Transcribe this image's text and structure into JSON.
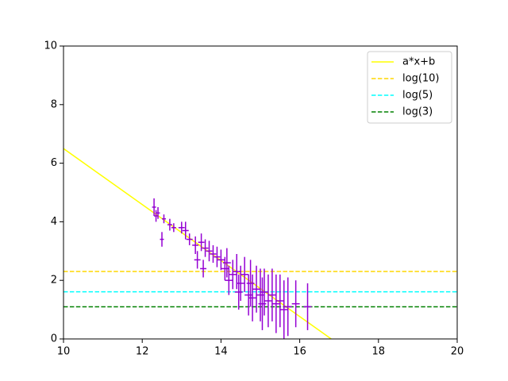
{
  "chart_data": {
    "type": "line",
    "xlim": [
      10,
      20
    ],
    "ylim": [
      0,
      10
    ],
    "xticks": [
      10,
      12,
      14,
      16,
      18,
      20
    ],
    "yticks": [
      0,
      2,
      4,
      6,
      8,
      10
    ],
    "grid": false,
    "legend": "upper right",
    "series": [
      {
        "name": "a*x+b",
        "color": "#ffff00",
        "style": "solid",
        "x": [
          10,
          16.8
        ],
        "values": [
          6.5,
          0
        ]
      },
      {
        "name": "log(10)",
        "color": "#ffd700",
        "style": "dashed",
        "x": [
          10,
          20
        ],
        "values": [
          2.303,
          2.303
        ]
      },
      {
        "name": "log(5)",
        "color": "#00ffff",
        "style": "dashed",
        "x": [
          10,
          20
        ],
        "values": [
          1.609,
          1.609
        ]
      },
      {
        "name": "log(3)",
        "color": "#008000",
        "style": "dashed",
        "x": [
          10,
          20
        ],
        "values": [
          1.099,
          1.099
        ]
      },
      {
        "color": "#9400d3",
        "style": "errorbar",
        "x": [
          12.3,
          12.35,
          12.4,
          12.5,
          12.55,
          12.7,
          12.8,
          13.0,
          13.1,
          13.2,
          13.35,
          13.4,
          13.5,
          13.55,
          13.6,
          13.7,
          13.8,
          13.9,
          14.0,
          14.1,
          14.15,
          14.2,
          14.3,
          14.4,
          14.45,
          14.5,
          14.6,
          14.7,
          14.75,
          14.8,
          14.9,
          15.0,
          15.05,
          15.1,
          15.2,
          15.3,
          15.4,
          15.5,
          15.6,
          15.7,
          15.9,
          16.2
        ],
        "values": [
          4.5,
          4.2,
          4.3,
          3.4,
          4.1,
          3.9,
          3.8,
          3.8,
          3.7,
          3.4,
          3.2,
          2.7,
          3.3,
          2.4,
          3.1,
          3.0,
          2.9,
          2.8,
          2.7,
          2.4,
          2.6,
          2.0,
          2.2,
          2.3,
          1.6,
          1.9,
          2.2,
          1.5,
          1.9,
          1.4,
          1.7,
          1.5,
          1.2,
          1.6,
          1.3,
          1.5,
          1.2,
          1.3,
          1.0,
          1.1,
          1.2,
          1.1
        ],
        "yerr": [
          0.3,
          0.2,
          0.2,
          0.25,
          0.15,
          0.2,
          0.15,
          0.2,
          0.3,
          0.2,
          0.3,
          0.3,
          0.3,
          0.3,
          0.3,
          0.35,
          0.3,
          0.35,
          0.35,
          0.4,
          0.5,
          0.5,
          0.5,
          0.6,
          0.6,
          0.6,
          0.6,
          0.7,
          0.8,
          0.8,
          0.8,
          0.9,
          0.9,
          0.8,
          0.9,
          0.9,
          1.0,
          0.9,
          1.0,
          1.0,
          0.8,
          0.8
        ],
        "xerr": [
          0.05,
          0.05,
          0.05,
          0.05,
          0.05,
          0.06,
          0.06,
          0.08,
          0.08,
          0.08,
          0.08,
          0.08,
          0.08,
          0.08,
          0.08,
          0.08,
          0.08,
          0.08,
          0.1,
          0.1,
          0.1,
          0.1,
          0.1,
          0.1,
          0.1,
          0.1,
          0.1,
          0.1,
          0.1,
          0.1,
          0.1,
          0.1,
          0.1,
          0.1,
          0.1,
          0.1,
          0.1,
          0.1,
          0.1,
          0.1,
          0.1,
          0.1
        ]
      }
    ]
  }
}
